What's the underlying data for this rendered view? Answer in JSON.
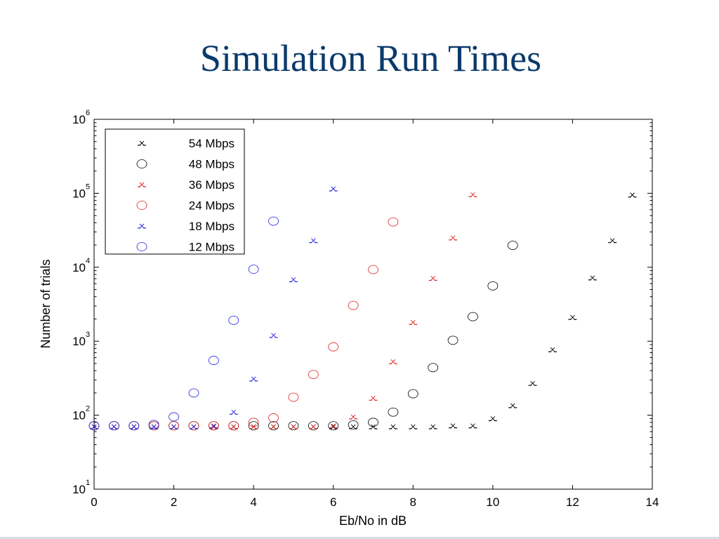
{
  "slide": {
    "title": "Simulation Run Times"
  },
  "chart_data": {
    "type": "scatter",
    "title": "",
    "xlabel": "Eb/No in dB",
    "ylabel": "Number of trials",
    "xlim": [
      0,
      14
    ],
    "ylim": [
      10,
      1000000
    ],
    "y_scale": "log",
    "x_ticks": [
      0,
      2,
      4,
      6,
      8,
      10,
      12,
      14
    ],
    "y_ticks": [
      {
        "value": 10,
        "base": "10",
        "exp": "1"
      },
      {
        "value": 100,
        "base": "10",
        "exp": "2"
      },
      {
        "value": 1000,
        "base": "10",
        "exp": "3"
      },
      {
        "value": 10000,
        "base": "10",
        "exp": "4"
      },
      {
        "value": 100000,
        "base": "10",
        "exp": "5"
      },
      {
        "value": 1000000,
        "base": "10",
        "exp": "6"
      }
    ],
    "grid": false,
    "legend_position": "top-left",
    "series": [
      {
        "name": "54 Mbps",
        "marker": "x",
        "color": "#000000",
        "x": [
          0,
          0.5,
          1,
          1.5,
          2,
          2.5,
          3,
          3.5,
          4,
          4.5,
          5,
          5.5,
          6,
          6.5,
          7,
          7.5,
          8,
          8.5,
          9,
          9.5,
          10,
          10.5,
          11,
          11.5,
          12,
          12.5,
          13,
          13.5
        ],
        "y": [
          70,
          70,
          70,
          70,
          70,
          70,
          70,
          70,
          70,
          70,
          70,
          70,
          70,
          70,
          70,
          70,
          70,
          70,
          72,
          72,
          90,
          135,
          270,
          770,
          2100,
          7200,
          23000,
          95000
        ]
      },
      {
        "name": "48 Mbps",
        "marker": "o",
        "color": "#000000",
        "x": [
          0,
          0.5,
          1,
          1.5,
          2,
          2.5,
          3,
          3.5,
          4,
          4.5,
          5,
          5.5,
          6,
          6.5,
          7,
          7.5,
          8,
          8.5,
          9,
          9.5,
          10,
          10.5
        ],
        "y": [
          72,
          72,
          72,
          72,
          72,
          72,
          72,
          72,
          72,
          72,
          72,
          72,
          72,
          74,
          80,
          110,
          195,
          440,
          1030,
          2150,
          5600,
          19800
        ]
      },
      {
        "name": "36 Mbps",
        "marker": "x",
        "color": "#e02020",
        "x": [
          0,
          0.5,
          1,
          1.5,
          2,
          2.5,
          3,
          3.5,
          4,
          4.5,
          5,
          5.5,
          6,
          6.5,
          7,
          7.5,
          8,
          8.5,
          9,
          9.5
        ],
        "y": [
          70,
          70,
          70,
          70,
          70,
          70,
          70,
          70,
          70,
          70,
          70,
          70,
          72,
          95,
          170,
          530,
          1800,
          7100,
          25000,
          96000
        ]
      },
      {
        "name": "24 Mbps",
        "marker": "o",
        "color": "#e02020",
        "x": [
          0,
          0.5,
          1,
          1.5,
          2,
          2.5,
          3,
          3.5,
          4,
          4.5,
          5,
          5.5,
          6,
          6.5,
          7,
          7.5
        ],
        "y": [
          72,
          72,
          72,
          72,
          72,
          72,
          72,
          72,
          80,
          92,
          175,
          355,
          840,
          3050,
          9300,
          41000
        ]
      },
      {
        "name": "18 Mbps",
        "marker": "x",
        "color": "#2020e0",
        "x": [
          0,
          0.5,
          1,
          1.5,
          2,
          2.5,
          3,
          3.5,
          4,
          4.5,
          5,
          5.5,
          6
        ],
        "y": [
          70,
          70,
          70,
          70,
          70,
          70,
          72,
          110,
          310,
          1200,
          6800,
          23000,
          115000
        ]
      },
      {
        "name": "12 Mbps",
        "marker": "o",
        "color": "#2020e0",
        "x": [
          0,
          0.5,
          1,
          1.5,
          2,
          2.5,
          3,
          3.5,
          4,
          4.5
        ],
        "y": [
          72,
          72,
          72,
          75,
          95,
          200,
          550,
          1920,
          9400,
          42000
        ]
      }
    ]
  }
}
